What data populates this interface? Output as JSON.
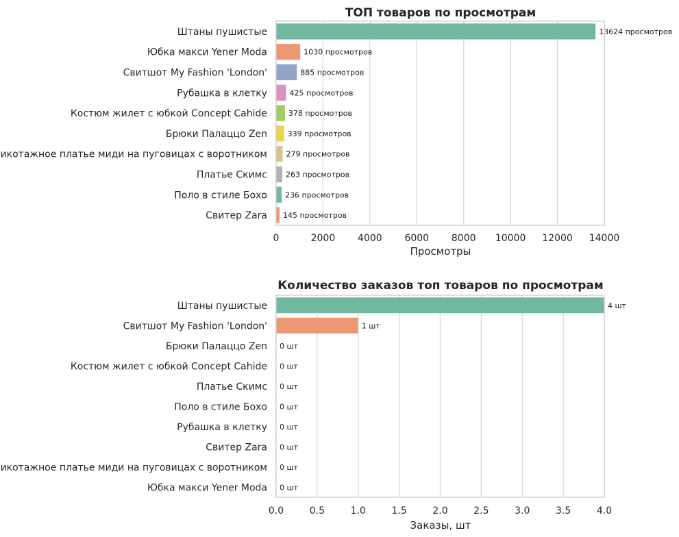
{
  "chart_data": [
    {
      "type": "bar",
      "orientation": "horizontal",
      "title": "ТОП товаров по просмотрам",
      "xlabel": "Просмотры",
      "ylabel": "",
      "xlim": [
        0,
        14000
      ],
      "xticks": [
        "0",
        "2000",
        "4000",
        "6000",
        "8000",
        "10000",
        "12000",
        "14000"
      ],
      "grid": "vertical",
      "categories": [
        "Штаны пушистые",
        "Юбка макси Yener Moda",
        "Свитшот My Fashion 'London'",
        "Рубашка в клетку",
        "Костюм жилет с юбкой Concept Cahide",
        "Брюки Палаццо Zen",
        "Трикотажное платье миди на пуговицах с воротником",
        "Платье Скимс",
        "Поло в стиле Бохо",
        "Свитер Zara"
      ],
      "values": [
        13624,
        1030,
        885,
        425,
        378,
        339,
        279,
        263,
        236,
        145
      ],
      "data_labels": [
        "13624 просмотров",
        "1030 просмотров",
        "885 просмотров",
        "425 просмотров",
        "378 просмотров",
        "339 просмотров",
        "279 просмотров",
        "263 просмотров",
        "236 просмотров",
        "145 просмотров"
      ],
      "colors": [
        "#72b8a0",
        "#ed9873",
        "#93a3c8",
        "#dc91c3",
        "#a1cd5e",
        "#ead44b",
        "#dcc28f",
        "#b3b3b3",
        "#72b8a0",
        "#ed9873"
      ]
    },
    {
      "type": "bar",
      "orientation": "horizontal",
      "title": "Количество заказов топ товаров по просмотрам",
      "xlabel": "Заказы, шт",
      "ylabel": "",
      "xlim": [
        0,
        4
      ],
      "xticks": [
        "0.0",
        "0.5",
        "1.0",
        "1.5",
        "2.0",
        "2.5",
        "3.0",
        "3.5",
        "4.0"
      ],
      "grid": "vertical",
      "categories": [
        "Штаны пушистые",
        "Свитшот My Fashion 'London'",
        "Брюки Палаццо Zen",
        "Костюм жилет с юбкой Concept Cahide",
        "Платье Скимс",
        "Поло в стиле Бохо",
        "Рубашка в клетку",
        "Свитер Zara",
        "Трикотажное платье миди на пуговицах с воротником",
        "Юбка макси Yener Moda"
      ],
      "values": [
        4,
        1,
        0,
        0,
        0,
        0,
        0,
        0,
        0,
        0
      ],
      "data_labels": [
        "4 шт",
        "1 шт",
        "0 шт",
        "0 шт",
        "0 шт",
        "0 шт",
        "0 шт",
        "0 шт",
        "0 шт",
        "0 шт"
      ],
      "colors": [
        "#72b8a0",
        "#ed9873",
        "#93a3c8",
        "#dc91c3",
        "#a1cd5e",
        "#ead44b",
        "#dcc28f",
        "#b3b3b3",
        "#72b8a0",
        "#ed9873"
      ]
    }
  ]
}
